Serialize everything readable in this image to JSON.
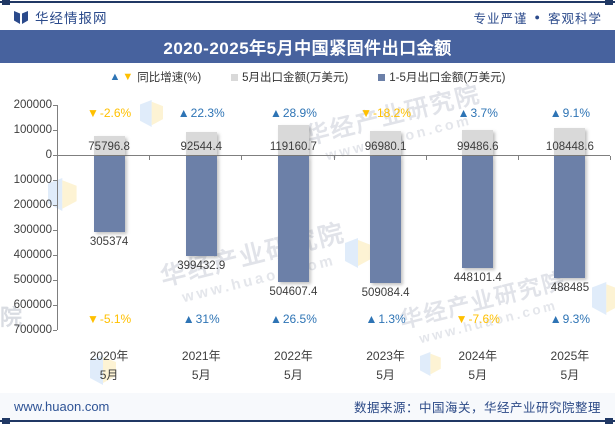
{
  "header": {
    "brand": "华经情报网",
    "slogan_left": "专业严谨",
    "slogan_bullet": "●",
    "slogan_right": "客观科学"
  },
  "title": "2020-2025年5月中国紧固件出口金额",
  "legend": [
    {
      "symbol": "triangles",
      "label": "同比增速(%)"
    },
    {
      "symbol": "square-gray",
      "label": "5月出口金额(万美元)"
    },
    {
      "symbol": "square-blue",
      "label": "1-5月出口金额(万美元)"
    }
  ],
  "colors": {
    "bar_gray": "#d9d9d9",
    "bar_blue": "#6c80a8",
    "pct_up": "#2e74b5",
    "pct_down": "#ffc000",
    "title_bar_bg": "#47629e",
    "accent_navy": "#203864",
    "footer_link": "#2f5496"
  },
  "chart_data": {
    "type": "bar",
    "orientation": "diverging-vertical",
    "categories": [
      {
        "line1": "2020年",
        "line2": "5月"
      },
      {
        "line1": "2021年",
        "line2": "5月"
      },
      {
        "line1": "2022年",
        "line2": "5月"
      },
      {
        "line1": "2023年",
        "line2": "5月"
      },
      {
        "line1": "2024年",
        "line2": "5月"
      },
      {
        "line1": "2025年",
        "line2": "5月"
      }
    ],
    "series": [
      {
        "name": "5月出口金额(万美元)",
        "direction": "up",
        "color": "#d9d9d9",
        "values": [
          75796.8,
          92544.4,
          119160.7,
          96980.1,
          99486.6,
          108448.6
        ],
        "labels": [
          "75796.8",
          "92544.4",
          "119160.7",
          "96980.1",
          "99486.6",
          "108448.6"
        ]
      },
      {
        "name": "1-5月出口金额(万美元)",
        "direction": "down",
        "color": "#6c80a8",
        "values": [
          305374,
          399432.9,
          504607.4,
          509084.4,
          448101.4,
          488485
        ],
        "labels": [
          "305374",
          "399432.9",
          "504607.4",
          "509084.4",
          "448101.4",
          "488485"
        ]
      },
      {
        "name": "同比增速(%) 5月",
        "position": "top",
        "values": [
          -2.6,
          22.3,
          28.9,
          -18.2,
          3.7,
          9.1
        ],
        "labels": [
          "-2.6%",
          "22.3%",
          "28.9%",
          "-18.2%",
          "3.7%",
          "9.1%"
        ]
      },
      {
        "name": "同比增速(%) 1-5月",
        "position": "bottom",
        "values": [
          -5.1,
          31,
          26.5,
          1.3,
          -7.6,
          9.3
        ],
        "labels": [
          "-5.1%",
          "31%",
          "26.5%",
          "1.3%",
          "-7.6%",
          "9.3%"
        ]
      }
    ],
    "y_axis": {
      "tick_labels": [
        "200000",
        "100000",
        "0",
        "100000",
        "200000",
        "300000",
        "400000",
        "500000",
        "600000",
        "700000"
      ],
      "up_max": 200000,
      "down_max": 700000,
      "unit_per_tick": 100000
    },
    "grid": false,
    "legend_position": "top"
  },
  "watermark": {
    "text": "华经产业研究院",
    "url": "www.huaon.com",
    "edge_char": "院"
  },
  "footer": {
    "url": "www.huaon.com",
    "source": "数据来源：中国海关，华经产业研究院整理"
  }
}
